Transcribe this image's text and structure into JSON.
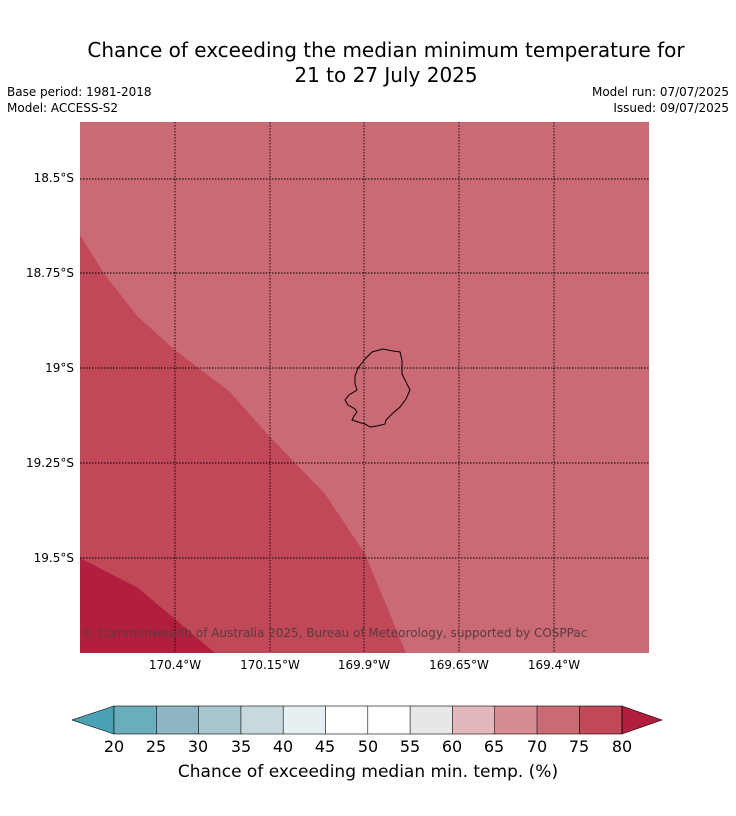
{
  "title_line1": "Chance of exceeding the median minimum temperature for",
  "title_line2": "21 to 27 July 2025",
  "base_period": "Base period: 1981-2018",
  "model": "Model: ACCESS-S2",
  "model_run": "Model run: 07/07/2025",
  "issued": "Issued: 09/07/2025",
  "copyright": "© Commonwealth of Australia 2025, Bureau of Meteorology, supported by COSPPac",
  "lat_labels": [
    "18.5°S",
    "18.75°S",
    "19°S",
    "19.25°S",
    "19.5°S"
  ],
  "lon_labels": [
    "170.4°W",
    "170.15°W",
    "169.9°W",
    "169.65°W",
    "169.4°W"
  ],
  "map_extent": {
    "lon": [
      -170.65,
      -169.15
    ],
    "lat": [
      -18.35,
      -19.75
    ]
  },
  "regions": [
    {
      "category": "70-75",
      "color": "#c96a74"
    },
    {
      "category": "75-80",
      "color": "#c04857"
    },
    {
      "category": ">80",
      "color": "#b21f3e"
    }
  ],
  "island": {
    "name": "",
    "outline_color": "#000000"
  },
  "colorbar": {
    "label": "Chance of exceeding median min. temp. (%)",
    "ticks": [
      "20",
      "25",
      "30",
      "35",
      "40",
      "45",
      "50",
      "55",
      "60",
      "65",
      "70",
      "75",
      "80"
    ],
    "below_color": "#4aa0b4",
    "above_color": "#b21f3e",
    "bin_colors": [
      "#6aaebe",
      "#8db6c2",
      "#a8c6cb",
      "#c8d8dc",
      "#e6eff1",
      "#ffffff",
      "#ffffff",
      "#e8e6e6",
      "#e2b8bd",
      "#d68a94",
      "#c96a74",
      "#c04857"
    ]
  }
}
